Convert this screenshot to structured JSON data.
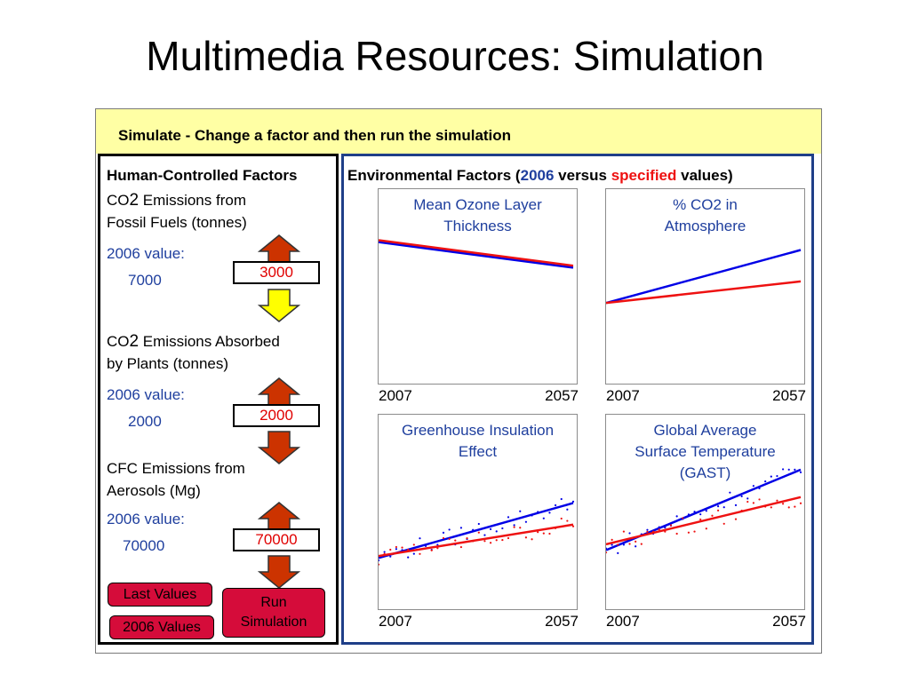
{
  "slide_title": "Multimedia Resources: Simulation",
  "header": {
    "instruction": "Simulate - Change a factor and then run the simulation"
  },
  "left_panel": {
    "heading": "Human-Controlled Factors",
    "value_label": "2006 value:",
    "factors": [
      {
        "line1_a": "CO",
        "line1_sub": "2",
        "line1_b": " Emissions  from",
        "line2": "Fossil Fuels (tonnes)",
        "value_2006": "7000",
        "specified": "3000",
        "arrow_up_color": "#cc3300",
        "arrow_down_color": "#ffff00"
      },
      {
        "line1_a": "CO",
        "line1_sub": "2",
        "line1_b": " Emissions Absorbed",
        "line2": "by Plants (tonnes)",
        "value_2006": "2000",
        "specified": "2000",
        "arrow_up_color": "#cc3300",
        "arrow_down_color": "#cc3300"
      },
      {
        "line1_a": "CFC Emissions  from",
        "line1_sub": "",
        "line1_b": "",
        "line2": "Aerosols (Mg)",
        "value_2006": "70000",
        "specified": "70000",
        "arrow_up_color": "#cc3300",
        "arrow_down_color": "#cc3300"
      }
    ],
    "buttons": {
      "last_values": "Last Values",
      "defaults_2006": "2006 Values",
      "run_line1": "Run",
      "run_line2": "Simulation"
    }
  },
  "env_panel": {
    "heading_prefix": "Environmental Factors (",
    "heading_year": "2006",
    "heading_mid": " versus ",
    "heading_specified": "specified",
    "heading_suffix": " values)"
  },
  "colors": {
    "baseline_2006": "#0000e6",
    "specified": "#ee1111",
    "header_bg": "#ffffa4",
    "button": "#d50c3a",
    "env_border": "#1f3f88"
  },
  "chart_data": [
    {
      "type": "line",
      "title": [
        "Mean Ozone Layer",
        "Thickness"
      ],
      "x_start_label": "2007",
      "x_end_label": "2057",
      "x": [
        2007,
        2057
      ],
      "series": [
        {
          "values": [
            0.73,
            0.6
          ]
        },
        {
          "values": [
            0.74,
            0.61
          ]
        }
      ],
      "ylim": [
        0,
        1
      ]
    },
    {
      "type": "line",
      "title": [
        "% CO2 in",
        "Atmosphere"
      ],
      "x_start_label": "2007",
      "x_end_label": "2057",
      "x": [
        2007,
        2057
      ],
      "series": [
        {
          "values": [
            0.42,
            0.69
          ]
        },
        {
          "values": [
            0.42,
            0.53
          ]
        }
      ],
      "ylim": [
        0,
        1
      ]
    },
    {
      "type": "line",
      "title": [
        "Greenhouse Insulation",
        "Effect"
      ],
      "x_start_label": "2007",
      "x_end_label": "2057",
      "x": [
        2007,
        2057
      ],
      "series": [
        {
          "values": [
            0.27,
            0.55
          ]
        },
        {
          "values": [
            0.28,
            0.44
          ]
        }
      ],
      "ylim": [
        0,
        1
      ]
    },
    {
      "type": "line",
      "title": [
        "Global Average",
        "Surface Temperature",
        "(GAST)"
      ],
      "x_start_label": "2007",
      "x_end_label": "2057",
      "x": [
        2007,
        2057
      ],
      "series": [
        {
          "values": [
            0.31,
            0.72
          ]
        },
        {
          "values": [
            0.34,
            0.58
          ]
        }
      ],
      "ylim": [
        0,
        1
      ]
    }
  ]
}
